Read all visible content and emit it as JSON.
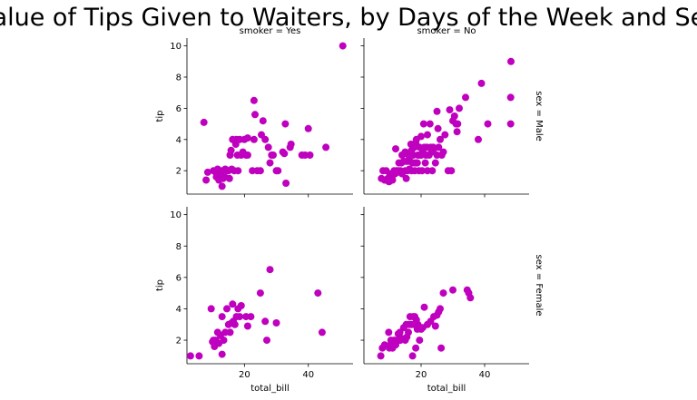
{
  "chart_data": {
    "type": "scatter",
    "title": "Value of Tips Given to Waiters, by Days of the Week and Sex",
    "xlabel": "total_bill",
    "ylabel": "tip",
    "xlim": [
      2,
      54
    ],
    "ylim": [
      0.5,
      10.5
    ],
    "xticks": [
      20,
      40
    ],
    "yticks": [
      2,
      4,
      6,
      8,
      10
    ],
    "color": "#bf00bf",
    "grid": false,
    "col_var": "smoker",
    "row_var": "sex",
    "col_titles": [
      "smoker = Yes",
      "smoker = No"
    ],
    "row_titles": [
      "sex = Male",
      "sex = Female"
    ],
    "panels": [
      {
        "row": 0,
        "col": 0,
        "label": "smoker = Yes | sex = Male",
        "points": [
          [
            7.3,
            5.1
          ],
          [
            8.0,
            1.4
          ],
          [
            8.5,
            1.9
          ],
          [
            10.3,
            2.0
          ],
          [
            11.0,
            1.9
          ],
          [
            11.2,
            1.6
          ],
          [
            11.6,
            2.1
          ],
          [
            12.0,
            1.4
          ],
          [
            12.5,
            1.7
          ],
          [
            13.0,
            2.0
          ],
          [
            13.0,
            1.0
          ],
          [
            13.3,
            1.5
          ],
          [
            13.8,
            1.6
          ],
          [
            14.0,
            2.1
          ],
          [
            14.5,
            2.0
          ],
          [
            15.0,
            2.0
          ],
          [
            15.3,
            1.5
          ],
          [
            15.5,
            3.0
          ],
          [
            15.8,
            3.3
          ],
          [
            16.0,
            2.1
          ],
          [
            16.3,
            4.0
          ],
          [
            16.8,
            2.0
          ],
          [
            17.3,
            3.7
          ],
          [
            17.5,
            4.0
          ],
          [
            17.8,
            3.0
          ],
          [
            18.0,
            2.0
          ],
          [
            18.5,
            4.0
          ],
          [
            19.0,
            3.0
          ],
          [
            19.5,
            3.2
          ],
          [
            20.0,
            4.0
          ],
          [
            20.5,
            3.0
          ],
          [
            21.0,
            3.0
          ],
          [
            21.0,
            4.1
          ],
          [
            22.5,
            2.0
          ],
          [
            23.0,
            4.0
          ],
          [
            23.0,
            6.5
          ],
          [
            23.3,
            5.6
          ],
          [
            24.0,
            2.0
          ],
          [
            25.0,
            2.0
          ],
          [
            25.3,
            4.3
          ],
          [
            25.8,
            5.2
          ],
          [
            26.5,
            4.0
          ],
          [
            27.5,
            3.5
          ],
          [
            28.0,
            2.5
          ],
          [
            28.5,
            3.0
          ],
          [
            29.0,
            3.0
          ],
          [
            30.0,
            2.0
          ],
          [
            30.5,
            2.0
          ],
          [
            32.0,
            3.2
          ],
          [
            32.5,
            3.1
          ],
          [
            32.8,
            5.0
          ],
          [
            33.0,
            1.2
          ],
          [
            34.3,
            3.5
          ],
          [
            34.6,
            3.7
          ],
          [
            38.0,
            3.0
          ],
          [
            39.0,
            3.0
          ],
          [
            40.0,
            4.7
          ],
          [
            40.5,
            3.0
          ],
          [
            45.5,
            3.5
          ],
          [
            50.8,
            10.0
          ]
        ]
      },
      {
        "row": 0,
        "col": 1,
        "label": "smoker = No | sex = Male",
        "points": [
          [
            7.5,
            1.5
          ],
          [
            8.0,
            2.0
          ],
          [
            8.5,
            1.4
          ],
          [
            9.0,
            2.0
          ],
          [
            9.5,
            1.5
          ],
          [
            9.8,
            1.3
          ],
          [
            10.0,
            1.3
          ],
          [
            10.2,
            1.8
          ],
          [
            10.5,
            1.5
          ],
          [
            10.8,
            1.6
          ],
          [
            11.0,
            1.4
          ],
          [
            11.5,
            2.0
          ],
          [
            11.8,
            1.8
          ],
          [
            12.0,
            3.4
          ],
          [
            12.3,
            2.0
          ],
          [
            12.5,
            1.9
          ],
          [
            12.8,
            2.0
          ],
          [
            13.0,
            2.5
          ],
          [
            13.5,
            2.0
          ],
          [
            13.8,
            2.5
          ],
          [
            14.0,
            1.8
          ],
          [
            14.0,
            3.0
          ],
          [
            14.5,
            2.6
          ],
          [
            15.0,
            2.0
          ],
          [
            15.0,
            3.2
          ],
          [
            15.3,
            1.5
          ],
          [
            15.5,
            2.6
          ],
          [
            15.8,
            2.0
          ],
          [
            16.0,
            3.0
          ],
          [
            16.3,
            2.1
          ],
          [
            16.5,
            2.6
          ],
          [
            16.8,
            3.7
          ],
          [
            17.0,
            2.0
          ],
          [
            17.0,
            3.3
          ],
          [
            17.3,
            2.5
          ],
          [
            17.5,
            3.0
          ],
          [
            17.8,
            3.5
          ],
          [
            18.0,
            2.0
          ],
          [
            18.0,
            2.5
          ],
          [
            18.3,
            3.8
          ],
          [
            18.5,
            2.5
          ],
          [
            18.5,
            4.0
          ],
          [
            18.8,
            2.5
          ],
          [
            19.0,
            3.0
          ],
          [
            19.3,
            2.0
          ],
          [
            19.5,
            3.5
          ],
          [
            19.8,
            3.0
          ],
          [
            20.0,
            3.0
          ],
          [
            20.0,
            4.2
          ],
          [
            20.3,
            2.0
          ],
          [
            20.5,
            3.3
          ],
          [
            20.8,
            5.0
          ],
          [
            21.0,
            3.5
          ],
          [
            21.3,
            2.5
          ],
          [
            21.5,
            3.0
          ],
          [
            21.8,
            3.5
          ],
          [
            22.0,
            2.0
          ],
          [
            22.0,
            4.3
          ],
          [
            22.5,
            3.0
          ],
          [
            22.8,
            5.0
          ],
          [
            23.0,
            3.5
          ],
          [
            23.3,
            3.2
          ],
          [
            23.5,
            2.0
          ],
          [
            23.8,
            3.5
          ],
          [
            24.0,
            3.4
          ],
          [
            24.5,
            2.5
          ],
          [
            25.0,
            3.0
          ],
          [
            25.0,
            5.8
          ],
          [
            25.3,
            4.7
          ],
          [
            25.5,
            3.5
          ],
          [
            26.0,
            4.0
          ],
          [
            26.5,
            3.0
          ],
          [
            27.0,
            3.2
          ],
          [
            27.5,
            4.3
          ],
          [
            28.5,
            2.0
          ],
          [
            29.0,
            5.9
          ],
          [
            29.5,
            2.0
          ],
          [
            30.0,
            5.2
          ],
          [
            30.5,
            5.5
          ],
          [
            31.0,
            5.0
          ],
          [
            31.3,
            4.5
          ],
          [
            31.5,
            5.0
          ],
          [
            32.0,
            6.0
          ],
          [
            34.0,
            6.7
          ],
          [
            38.0,
            4.0
          ],
          [
            39.0,
            7.6
          ],
          [
            41.0,
            5.0
          ],
          [
            48.2,
            5.0
          ],
          [
            48.2,
            6.7
          ],
          [
            48.3,
            9.0
          ]
        ]
      },
      {
        "row": 1,
        "col": 0,
        "label": "smoker = Yes | sex = Female",
        "points": [
          [
            3.1,
            1.0
          ],
          [
            5.8,
            1.0
          ],
          [
            9.6,
            4.0
          ],
          [
            10.0,
            1.9
          ],
          [
            10.3,
            2.0
          ],
          [
            10.6,
            1.6
          ],
          [
            11.0,
            2.0
          ],
          [
            11.6,
            2.5
          ],
          [
            12.0,
            1.8
          ],
          [
            12.5,
            2.3
          ],
          [
            13.0,
            3.5
          ],
          [
            13.0,
            1.1
          ],
          [
            13.5,
            2.0
          ],
          [
            14.0,
            2.5
          ],
          [
            14.5,
            4.0
          ],
          [
            15.0,
            3.0
          ],
          [
            15.5,
            2.5
          ],
          [
            16.0,
            3.1
          ],
          [
            16.3,
            4.3
          ],
          [
            16.5,
            3.2
          ],
          [
            17.0,
            3.0
          ],
          [
            17.5,
            3.5
          ],
          [
            18.0,
            4.0
          ],
          [
            18.5,
            3.5
          ],
          [
            19.0,
            4.2
          ],
          [
            20.5,
            3.5
          ],
          [
            21.0,
            2.9
          ],
          [
            22.0,
            3.5
          ],
          [
            25.0,
            5.0
          ],
          [
            26.5,
            3.2
          ],
          [
            27.0,
            2.0
          ],
          [
            28.0,
            6.5
          ],
          [
            30.0,
            3.1
          ],
          [
            43.0,
            5.0
          ],
          [
            44.3,
            2.5
          ]
        ]
      },
      {
        "row": 1,
        "col": 1,
        "label": "smoker = No | sex = Female",
        "points": [
          [
            7.3,
            1.0
          ],
          [
            7.8,
            1.5
          ],
          [
            8.5,
            1.7
          ],
          [
            9.8,
            2.5
          ],
          [
            10.0,
            1.5
          ],
          [
            10.3,
            1.7
          ],
          [
            10.5,
            2.0
          ],
          [
            10.8,
            1.9
          ],
          [
            11.0,
            1.5
          ],
          [
            11.3,
            1.7
          ],
          [
            11.5,
            2.0
          ],
          [
            12.0,
            1.7
          ],
          [
            12.3,
            1.9
          ],
          [
            12.5,
            2.0
          ],
          [
            12.8,
            2.4
          ],
          [
            13.0,
            2.0
          ],
          [
            13.3,
            2.5
          ],
          [
            13.5,
            2.0
          ],
          [
            14.0,
            2.1
          ],
          [
            14.5,
            2.8
          ],
          [
            15.0,
            2.0
          ],
          [
            15.3,
            3.0
          ],
          [
            15.5,
            2.2
          ],
          [
            16.0,
            2.5
          ],
          [
            16.3,
            3.0
          ],
          [
            16.5,
            3.5
          ],
          [
            17.0,
            3.0
          ],
          [
            17.3,
            1.0
          ],
          [
            17.5,
            3.5
          ],
          [
            17.8,
            3.0
          ],
          [
            18.0,
            3.5
          ],
          [
            18.3,
            1.5
          ],
          [
            18.5,
            3.3
          ],
          [
            18.8,
            2.7
          ],
          [
            19.0,
            3.0
          ],
          [
            19.5,
            2.0
          ],
          [
            20.0,
            2.7
          ],
          [
            20.5,
            2.8
          ],
          [
            21.0,
            4.1
          ],
          [
            22.0,
            3.0
          ],
          [
            23.0,
            3.2
          ],
          [
            24.0,
            3.5
          ],
          [
            24.5,
            2.9
          ],
          [
            25.0,
            3.6
          ],
          [
            25.5,
            3.8
          ],
          [
            26.0,
            4.0
          ],
          [
            26.3,
            1.5
          ],
          [
            27.0,
            5.0
          ],
          [
            30.0,
            5.2
          ],
          [
            34.5,
            5.2
          ],
          [
            35.0,
            5.0
          ],
          [
            35.5,
            4.7
          ]
        ]
      }
    ]
  }
}
